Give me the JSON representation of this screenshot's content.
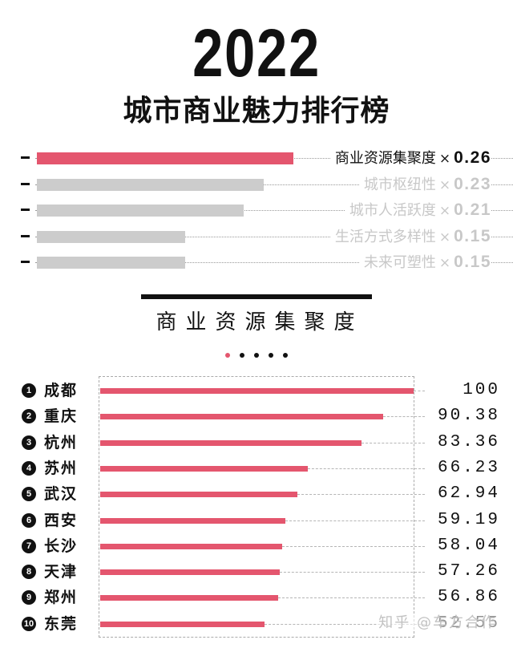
{
  "header": {
    "year": "2022",
    "title": "城市商业魅力排行榜"
  },
  "weights": [
    {
      "label": "商业资源集聚度",
      "value": "0.26",
      "weight": 0.26,
      "active": true
    },
    {
      "label": "城市枢纽性",
      "value": "0.23",
      "weight": 0.23,
      "active": false
    },
    {
      "label": "城市人活跃度",
      "value": "0.21",
      "weight": 0.21,
      "active": false
    },
    {
      "label": "生活方式多样性",
      "value": "0.15",
      "weight": 0.15,
      "active": false
    },
    {
      "label": "未来可塑性",
      "value": "0.15",
      "weight": 0.15,
      "active": false
    }
  ],
  "times_symbol": "×",
  "section": {
    "subtitle": "商业资源集聚度",
    "pager_total": 5,
    "pager_active": 0
  },
  "chart_data": {
    "type": "bar",
    "orientation": "horizontal",
    "categories": [
      "成都",
      "重庆",
      "杭州",
      "苏州",
      "武汉",
      "西安",
      "长沙",
      "天津",
      "郑州",
      "东莞"
    ],
    "ranks": [
      "1",
      "2",
      "3",
      "4",
      "5",
      "6",
      "7",
      "8",
      "9",
      "10"
    ],
    "values": [
      100,
      90.38,
      83.36,
      66.23,
      62.94,
      59.19,
      58.04,
      57.26,
      56.86,
      52.55
    ],
    "value_labels": [
      "100",
      "90.38",
      "83.36",
      "66.23",
      "62.94",
      "59.19",
      "58.04",
      "57.26",
      "56.86",
      "52.55"
    ],
    "xlim": [
      0,
      100
    ],
    "bar_color": "#e4566e"
  },
  "watermark": "知乎 @车方合作",
  "colors": {
    "accent": "#e4566e",
    "inactive": "#cccccc",
    "text": "#111111"
  }
}
